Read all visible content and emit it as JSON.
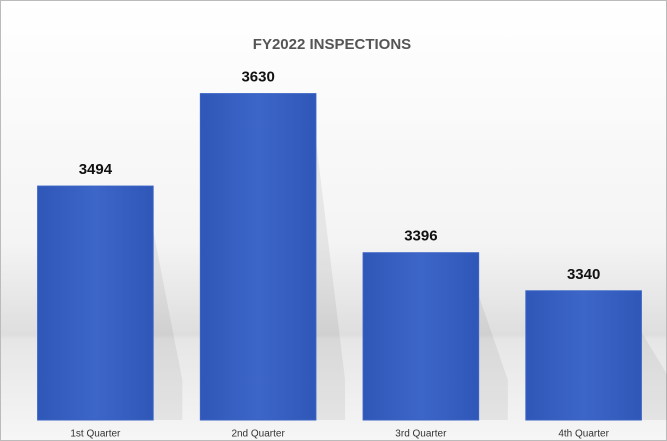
{
  "chart_data": {
    "type": "bar",
    "title": "FY2022 INSPECTIONS",
    "categories": [
      "1st Quarter",
      "2nd Quarter",
      "3rd Quarter",
      "4th Quarter"
    ],
    "values": [
      3494,
      3630,
      3396,
      3340
    ],
    "color": "#3a63c4",
    "ylim": [
      3150,
      3650
    ]
  }
}
